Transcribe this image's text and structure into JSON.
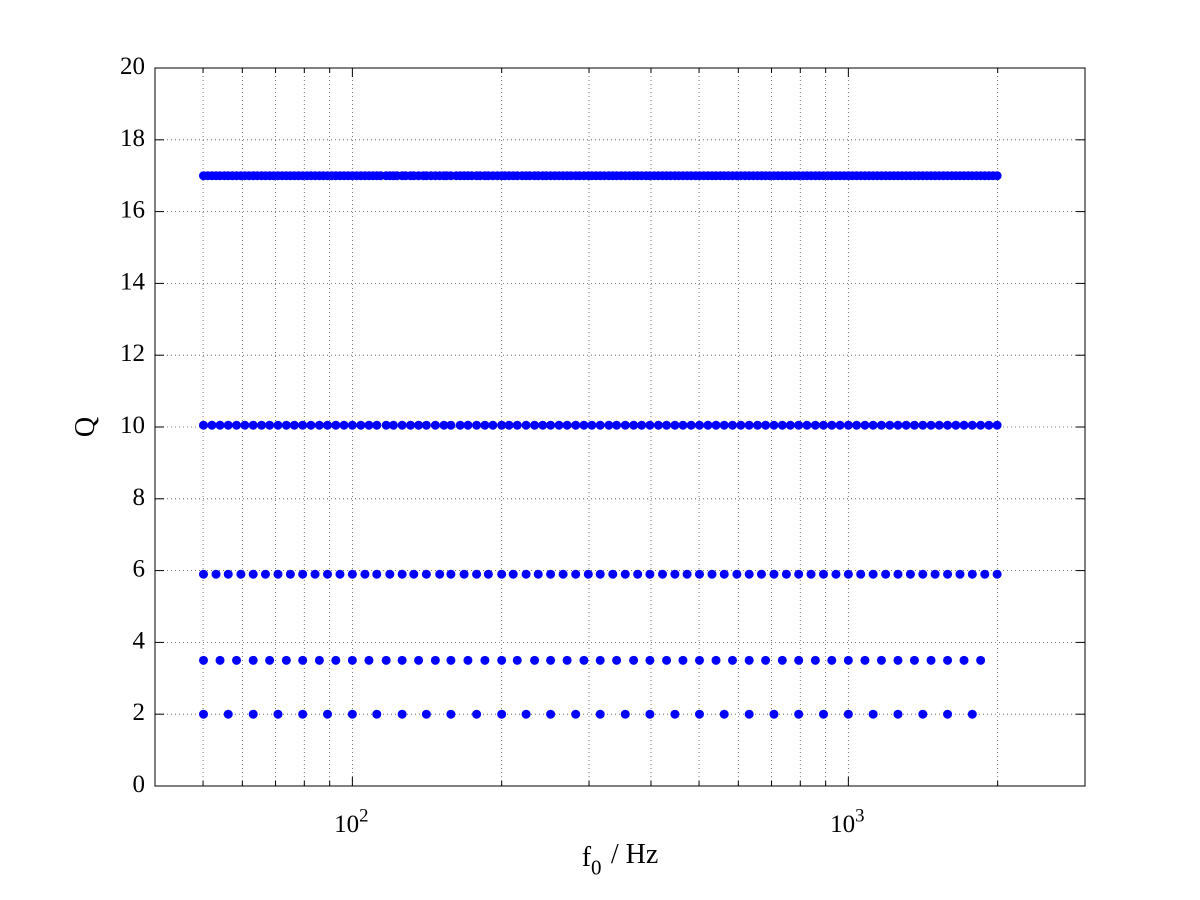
{
  "chart_data": {
    "type": "scatter",
    "xlabel": "f_0 / Hz",
    "ylabel": "Q",
    "xscale": "log",
    "grid": true,
    "xlim": [
      40,
      3000
    ],
    "ylim": [
      0,
      20
    ],
    "xticks": [
      {
        "value": 100,
        "label": "10^2"
      },
      {
        "value": 1000,
        "label": "10^3"
      }
    ],
    "xminorticks": [
      50,
      60,
      70,
      80,
      90,
      200,
      300,
      400,
      500,
      600,
      700,
      800,
      900,
      2000
    ],
    "yticks": [
      0,
      2,
      4,
      6,
      8,
      10,
      12,
      14,
      16,
      18,
      20
    ],
    "series": [
      {
        "color": "#0000ff",
        "x": [
          50.1,
          56.2,
          63.1,
          70.8,
          79.4,
          89.1,
          100,
          112,
          126,
          141,
          158,
          178,
          200,
          224,
          251,
          282,
          316,
          355,
          398,
          447,
          501,
          562,
          631,
          708,
          794,
          891,
          1000,
          1122,
          1259,
          1413,
          1585,
          1778
        ],
        "y": [
          2,
          2,
          2,
          2,
          2,
          2,
          2,
          2,
          2,
          2,
          2,
          2,
          2,
          2,
          2,
          2,
          2,
          2,
          2,
          2,
          2,
          2,
          2,
          2,
          2,
          2,
          2,
          2,
          2,
          2,
          2,
          2
        ]
      },
      {
        "color": "#0000ff",
        "x": [
          50.1,
          54.1,
          58.4,
          63.1,
          68.1,
          73.6,
          79.4,
          85.8,
          92.6,
          100,
          108,
          117,
          126,
          136,
          147,
          158,
          171,
          185,
          200,
          215,
          233,
          251,
          271,
          293,
          316,
          341,
          369,
          398,
          430,
          464,
          501,
          541,
          584,
          631,
          681,
          736,
          794,
          858,
          926,
          1000,
          1080,
          1166,
          1259,
          1359,
          1468,
          1585,
          1711,
          1848
        ],
        "y": [
          3.5,
          3.5,
          3.5,
          3.5,
          3.5,
          3.5,
          3.5,
          3.5,
          3.5,
          3.5,
          3.5,
          3.5,
          3.5,
          3.5,
          3.5,
          3.5,
          3.5,
          3.5,
          3.5,
          3.5,
          3.5,
          3.5,
          3.5,
          3.5,
          3.5,
          3.5,
          3.5,
          3.5,
          3.5,
          3.5,
          3.5,
          3.5,
          3.5,
          3.5,
          3.5,
          3.5,
          3.5,
          3.5,
          3.5,
          3.5,
          3.5,
          3.5,
          3.5,
          3.5,
          3.5,
          3.5,
          3.5,
          3.5
        ]
      },
      {
        "color": "#0000ff",
        "x": [
          50.1,
          53.1,
          56.2,
          59.6,
          63.1,
          66.8,
          70.8,
          75.0,
          79.4,
          84.1,
          89.1,
          94.4,
          100,
          106,
          112,
          119,
          126,
          133,
          141,
          150,
          158,
          168,
          178,
          188,
          200,
          211,
          224,
          237,
          251,
          266,
          282,
          299,
          316,
          335,
          355,
          376,
          398,
          422,
          447,
          473,
          501,
          531,
          562,
          596,
          631,
          668,
          708,
          750,
          794,
          841,
          891,
          944,
          1000,
          1059,
          1122,
          1189,
          1259,
          1334,
          1413,
          1496,
          1585,
          1679,
          1778,
          1884,
          1995
        ],
        "y": [
          5.9,
          5.9,
          5.9,
          5.9,
          5.9,
          5.9,
          5.9,
          5.9,
          5.9,
          5.9,
          5.9,
          5.9,
          5.9,
          5.9,
          5.9,
          5.9,
          5.9,
          5.9,
          5.9,
          5.9,
          5.9,
          5.9,
          5.9,
          5.9,
          5.9,
          5.9,
          5.9,
          5.9,
          5.9,
          5.9,
          5.9,
          5.9,
          5.9,
          5.9,
          5.9,
          5.9,
          5.9,
          5.9,
          5.9,
          5.9,
          5.9,
          5.9,
          5.9,
          5.9,
          5.9,
          5.9,
          5.9,
          5.9,
          5.9,
          5.9,
          5.9,
          5.9,
          5.9,
          5.9,
          5.9,
          5.9,
          5.9,
          5.9,
          5.9,
          5.9,
          5.9,
          5.9,
          5.9,
          5.9,
          5.9
        ]
      },
      {
        "color": "#0000ff",
        "x": [
          50.1,
          52.1,
          54.1,
          56.2,
          58.4,
          60.7,
          63.1,
          65.6,
          68.1,
          70.8,
          73.6,
          76.4,
          79.4,
          82.5,
          85.8,
          89.1,
          92.6,
          96.2,
          100,
          104,
          108,
          112,
          117,
          121,
          126,
          131,
          136,
          141,
          147,
          153,
          158,
          165,
          171,
          178,
          185,
          192,
          200,
          207,
          215,
          224,
          233,
          242,
          251,
          261,
          271,
          282,
          293,
          304,
          316,
          329,
          341,
          355,
          369,
          383,
          398,
          414,
          430,
          447,
          464,
          482,
          501,
          521,
          541,
          562,
          584,
          607,
          631,
          656,
          681,
          708,
          736,
          764,
          794,
          825,
          858,
          891,
          926,
          962,
          1000,
          1039,
          1080,
          1122,
          1166,
          1212,
          1259,
          1308,
          1359,
          1413,
          1468,
          1525,
          1585,
          1647,
          1711,
          1778,
          1848,
          1920,
          1995
        ],
        "y": [
          10.05,
          10.05,
          10.05,
          10.05,
          10.05,
          10.05,
          10.05,
          10.05,
          10.05,
          10.05,
          10.05,
          10.05,
          10.05,
          10.05,
          10.05,
          10.05,
          10.05,
          10.05,
          10.05,
          10.05,
          10.05,
          10.05,
          10.05,
          10.05,
          10.05,
          10.05,
          10.05,
          10.05,
          10.05,
          10.05,
          10.05,
          10.05,
          10.05,
          10.05,
          10.05,
          10.05,
          10.05,
          10.05,
          10.05,
          10.05,
          10.05,
          10.05,
          10.05,
          10.05,
          10.05,
          10.05,
          10.05,
          10.05,
          10.05,
          10.05,
          10.05,
          10.05,
          10.05,
          10.05,
          10.05,
          10.05,
          10.05,
          10.05,
          10.05,
          10.05,
          10.05,
          10.05,
          10.05,
          10.05,
          10.05,
          10.05,
          10.05,
          10.05,
          10.05,
          10.05,
          10.05,
          10.05,
          10.05,
          10.05,
          10.05,
          10.05,
          10.05,
          10.05,
          10.05,
          10.05,
          10.05,
          10.05,
          10.05,
          10.05,
          10.05,
          10.05,
          10.05,
          10.05,
          10.05,
          10.05,
          10.05,
          10.05,
          10.05,
          10.05,
          10.05,
          10.05,
          10.05
        ]
      },
      {
        "color": "#0000ff",
        "x": [
          50.1,
          51.1,
          52.1,
          53.1,
          54.1,
          55.2,
          56.2,
          57.3,
          58.4,
          59.6,
          60.7,
          61.9,
          63.1,
          64.3,
          65.6,
          66.8,
          68.1,
          69.4,
          70.8,
          72.2,
          73.6,
          75.0,
          76.4,
          77.9,
          79.4,
          81.0,
          82.5,
          84.1,
          85.8,
          87.4,
          89.1,
          90.9,
          92.6,
          94.4,
          96.2,
          98.1,
          100,
          102,
          104,
          106,
          108,
          110,
          112,
          114,
          117,
          119,
          121,
          123,
          126,
          128,
          131,
          133,
          136,
          139,
          141,
          144,
          147,
          150,
          153,
          155,
          158,
          162,
          165,
          168,
          171,
          174,
          178,
          181,
          185,
          188,
          192,
          196,
          200,
          203,
          207,
          211,
          215,
          220,
          224,
          228,
          233,
          237,
          242,
          246,
          251,
          256,
          261,
          266,
          271,
          276,
          282,
          287,
          293,
          299,
          304,
          310,
          316,
          322,
          329,
          335,
          341,
          348,
          355,
          362,
          369,
          376,
          383,
          391,
          398,
          406,
          414,
          422,
          430,
          438,
          447,
          455,
          464,
          473,
          482,
          492,
          501,
          511,
          521,
          531,
          541,
          552,
          562,
          573,
          584,
          596,
          607,
          619,
          631,
          643,
          656,
          668,
          681,
          694,
          708,
          722,
          736,
          750,
          764,
          779,
          794,
          810,
          825,
          841,
          858,
          874,
          891,
          909,
          926,
          944,
          962,
          981,
          1000,
          1019,
          1039,
          1059,
          1080,
          1101,
          1122,
          1144,
          1166,
          1189,
          1212,
          1235,
          1259,
          1283,
          1308,
          1334,
          1359,
          1386,
          1413,
          1440,
          1468,
          1496,
          1525,
          1555,
          1585,
          1616,
          1647,
          1679,
          1711,
          1745,
          1778,
          1813,
          1848,
          1884,
          1920,
          1957,
          1995
        ],
        "y": [
          17,
          17,
          17,
          17,
          17,
          17,
          17,
          17,
          17,
          17,
          17,
          17,
          17,
          17,
          17,
          17,
          17,
          17,
          17,
          17,
          17,
          17,
          17,
          17,
          17,
          17,
          17,
          17,
          17,
          17,
          17,
          17,
          17,
          17,
          17,
          17,
          17,
          17,
          17,
          17,
          17,
          17,
          17,
          17,
          17,
          17,
          17,
          17,
          17,
          17,
          17,
          17,
          17,
          17,
          17,
          17,
          17,
          17,
          17,
          17,
          17,
          17,
          17,
          17,
          17,
          17,
          17,
          17,
          17,
          17,
          17,
          17,
          17,
          17,
          17,
          17,
          17,
          17,
          17,
          17,
          17,
          17,
          17,
          17,
          17,
          17,
          17,
          17,
          17,
          17,
          17,
          17,
          17,
          17,
          17,
          17,
          17,
          17,
          17,
          17,
          17,
          17,
          17,
          17,
          17,
          17,
          17,
          17,
          17,
          17,
          17,
          17,
          17,
          17,
          17,
          17,
          17,
          17,
          17,
          17,
          17,
          17,
          17,
          17,
          17,
          17,
          17,
          17,
          17,
          17,
          17,
          17,
          17,
          17,
          17,
          17,
          17,
          17,
          17,
          17,
          17,
          17,
          17,
          17,
          17,
          17,
          17,
          17,
          17,
          17,
          17,
          17,
          17,
          17,
          17,
          17,
          17,
          17,
          17,
          17,
          17,
          17,
          17,
          17,
          17,
          17,
          17,
          17,
          17,
          17,
          17,
          17,
          17,
          17,
          17,
          17,
          17,
          17,
          17,
          17,
          17,
          17,
          17,
          17,
          17,
          17,
          17,
          17,
          17,
          17,
          17,
          17,
          17
        ]
      }
    ]
  }
}
